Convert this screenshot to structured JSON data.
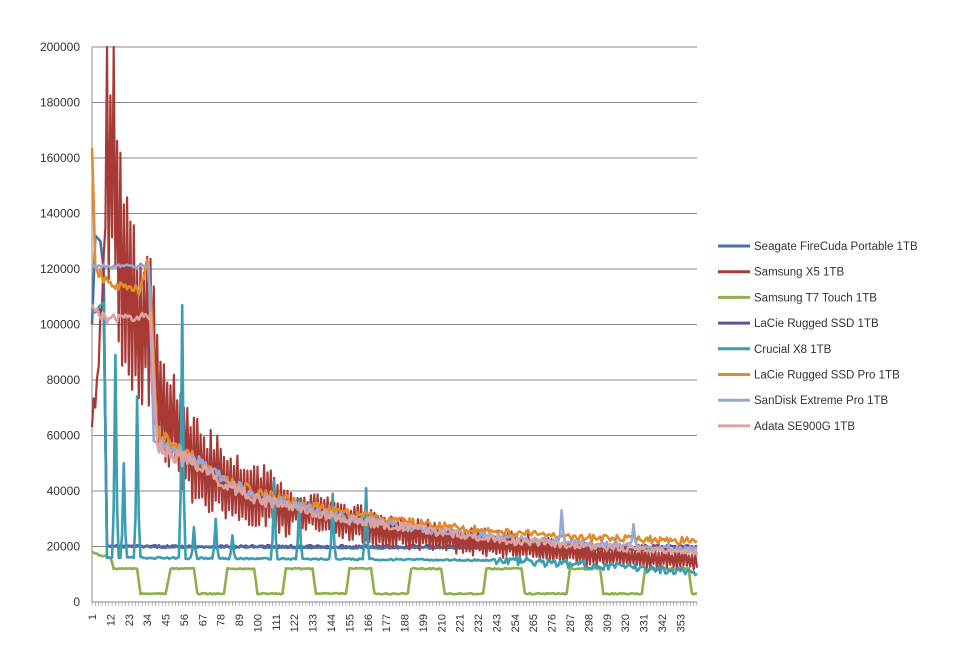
{
  "chart_data": {
    "type": "line",
    "title": "",
    "xlabel": "",
    "ylabel": "",
    "xlim": [
      1,
      363
    ],
    "ylim": [
      0,
      200000
    ],
    "y_ticks": [
      0,
      20000,
      40000,
      60000,
      80000,
      100000,
      120000,
      140000,
      160000,
      180000,
      200000
    ],
    "x_tick_labels": [
      "1",
      "12",
      "23",
      "34",
      "45",
      "56",
      "67",
      "78",
      "89",
      "100",
      "111",
      "122",
      "133",
      "144",
      "155",
      "166",
      "177",
      "188",
      "199",
      "210",
      "221",
      "232",
      "243",
      "254",
      "265",
      "276",
      "287",
      "298",
      "309",
      "320",
      "331",
      "342",
      "353"
    ],
    "grid": "horizontal",
    "legend_position": "right",
    "series": [
      {
        "name": "Seagate FireCuda Portable 1TB",
        "color": "#4472a8",
        "style": "seagate",
        "points": [
          [
            1,
            100000
          ],
          [
            3,
            132000
          ],
          [
            6,
            130000
          ],
          [
            8,
            120000
          ],
          [
            9,
            60000
          ],
          [
            10,
            20000
          ],
          [
            363,
            19000
          ]
        ]
      },
      {
        "name": "Samsung X5 1TB",
        "color": "#a83a36",
        "style": "samsungx5",
        "points": [
          [
            1,
            66000
          ],
          [
            4,
            78000
          ],
          [
            8,
            120000
          ],
          [
            10,
            162000
          ],
          [
            12,
            140000
          ],
          [
            14,
            180000
          ],
          [
            16,
            130000
          ],
          [
            20,
            118000
          ],
          [
            24,
            106000
          ],
          [
            30,
            102000
          ],
          [
            35,
            100000
          ],
          [
            40,
            80000
          ],
          [
            45,
            68000
          ],
          [
            55,
            56000
          ],
          [
            65,
            50000
          ],
          [
            75,
            46000
          ],
          [
            85,
            42000
          ],
          [
            100,
            38000
          ],
          [
            125,
            33000
          ],
          [
            150,
            30000
          ],
          [
            175,
            26000
          ],
          [
            200,
            24000
          ],
          [
            230,
            22000
          ],
          [
            260,
            20000
          ],
          [
            300,
            17000
          ],
          [
            363,
            15000
          ]
        ]
      },
      {
        "name": "Samsung T7 Touch 1TB",
        "color": "#8db048",
        "style": "t7",
        "points": [
          [
            1,
            18000
          ],
          [
            5,
            17000
          ],
          [
            12,
            16000
          ],
          [
            14,
            12000
          ],
          [
            28,
            12000
          ],
          [
            30,
            3000
          ],
          [
            45,
            3000
          ],
          [
            48,
            12000
          ],
          [
            62,
            12000
          ],
          [
            64,
            3000
          ],
          [
            80,
            3000
          ],
          [
            82,
            12000
          ],
          [
            98,
            12000
          ],
          [
            100,
            3000
          ],
          [
            115,
            3000
          ],
          [
            117,
            12000
          ],
          [
            133,
            12000
          ],
          [
            135,
            3000
          ],
          [
            153,
            3000
          ],
          [
            155,
            12000
          ],
          [
            168,
            12000
          ],
          [
            170,
            3000
          ],
          [
            190,
            3000
          ],
          [
            192,
            12000
          ],
          [
            210,
            12000
          ],
          [
            212,
            3000
          ],
          [
            235,
            3000
          ],
          [
            237,
            12000
          ],
          [
            258,
            12000
          ],
          [
            260,
            3000
          ],
          [
            285,
            3000
          ],
          [
            287,
            12000
          ],
          [
            305,
            12000
          ],
          [
            307,
            3000
          ],
          [
            330,
            3000
          ],
          [
            332,
            12000
          ],
          [
            358,
            12000
          ],
          [
            360,
            3000
          ],
          [
            363,
            3000
          ]
        ]
      },
      {
        "name": "LaCie Rugged SSD 1TB",
        "color": "#6b4f91",
        "style": "lacie",
        "points": [
          [
            1,
            104000
          ],
          [
            8,
            106000
          ],
          [
            10,
            20000
          ],
          [
            363,
            20000
          ]
        ]
      },
      {
        "name": "Crucial X8 1TB",
        "color": "#3c9cb0",
        "style": "crucial",
        "points": [
          [
            1,
            104000
          ],
          [
            8,
            108000
          ],
          [
            10,
            16000
          ],
          [
            250,
            15000
          ],
          [
            363,
            11000
          ]
        ],
        "spikes": [
          [
            15,
            89000
          ],
          [
            20,
            50000
          ],
          [
            28,
            74000
          ],
          [
            55,
            107000
          ],
          [
            62,
            27000
          ],
          [
            75,
            30000
          ],
          [
            85,
            24000
          ],
          [
            110,
            44000
          ],
          [
            125,
            37000
          ],
          [
            145,
            39000
          ],
          [
            165,
            41000
          ]
        ]
      },
      {
        "name": "LaCie Rugged SSD Pro 1TB",
        "color": "#e38a2b",
        "style": "laciepro",
        "points": [
          [
            1,
            162000
          ],
          [
            3,
            120000
          ],
          [
            10,
            115000
          ],
          [
            30,
            112000
          ],
          [
            34,
            122000
          ],
          [
            36,
            112000
          ],
          [
            40,
            60000
          ],
          [
            60,
            52000
          ],
          [
            80,
            44000
          ],
          [
            100,
            39000
          ],
          [
            150,
            32000
          ],
          [
            200,
            28000
          ],
          [
            250,
            25000
          ],
          [
            300,
            23000
          ],
          [
            363,
            22000
          ]
        ]
      },
      {
        "name": "SanDisk Extreme Pro 1TB",
        "color": "#96a8d6",
        "style": "sandisk",
        "points": [
          [
            1,
            121000
          ],
          [
            35,
            121000
          ],
          [
            38,
            58000
          ],
          [
            60,
            52000
          ],
          [
            80,
            44000
          ],
          [
            100,
            38000
          ],
          [
            150,
            31000
          ],
          [
            200,
            26000
          ],
          [
            250,
            23000
          ],
          [
            300,
            21000
          ],
          [
            363,
            19000
          ]
        ],
        "spikes": [
          [
            282,
            33000
          ],
          [
            325,
            28000
          ]
        ]
      },
      {
        "name": "Adata SE900G 1TB",
        "color": "#dea3a0",
        "style": "adata",
        "points": [
          [
            1,
            106000
          ],
          [
            10,
            102000
          ],
          [
            36,
            103000
          ],
          [
            40,
            57000
          ],
          [
            60,
            50000
          ],
          [
            80,
            43000
          ],
          [
            100,
            37000
          ],
          [
            150,
            30000
          ],
          [
            200,
            26000
          ],
          [
            250,
            22000
          ],
          [
            300,
            20000
          ],
          [
            363,
            18000
          ]
        ]
      }
    ]
  }
}
